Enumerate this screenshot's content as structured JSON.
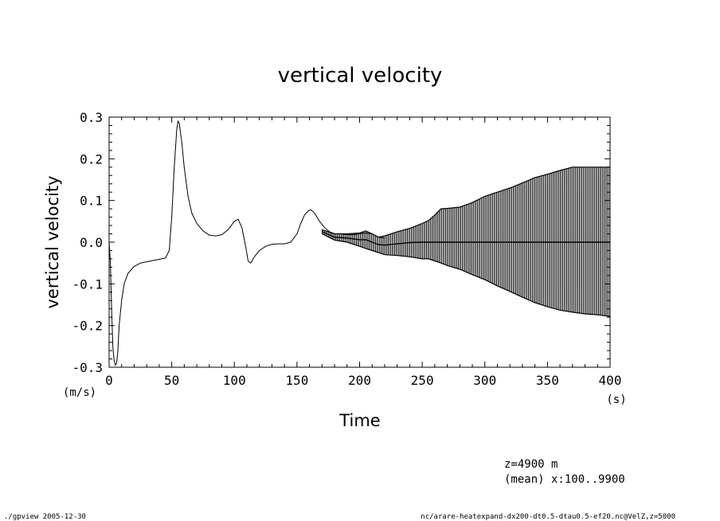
{
  "chart_data": {
    "type": "line",
    "title": "vertical velocity",
    "xlabel": "Time",
    "ylabel": "vertical velocity",
    "x_unit": "(s)",
    "y_unit": "(m/s)",
    "xlim": [
      0,
      400
    ],
    "ylim": [
      -0.3,
      0.3
    ],
    "x_ticks": [
      0,
      50,
      100,
      150,
      200,
      250,
      300,
      350,
      400
    ],
    "x_tick_labels": [
      "0",
      "50",
      "100",
      "150",
      "200",
      "250",
      "300",
      "350",
      "400"
    ],
    "y_ticks": [
      -0.3,
      -0.2,
      -0.1,
      0.0,
      0.1,
      0.2,
      0.3
    ],
    "y_tick_labels": [
      "-0.3",
      "-0.2",
      "-0.1",
      "0.0",
      "0.1",
      "0.2",
      "0.3"
    ],
    "grid": false,
    "series": [
      {
        "style": "line",
        "x": [
          0,
          1,
          2,
          3,
          4,
          5,
          6,
          7,
          8,
          10,
          12,
          15,
          20,
          25,
          30,
          35,
          40,
          45,
          48,
          50,
          52,
          54,
          55,
          56,
          58,
          60,
          63,
          66,
          70,
          75,
          80,
          85,
          90,
          95,
          100,
          103,
          106,
          109,
          111,
          113,
          116,
          120,
          125,
          130,
          135,
          140,
          145,
          150,
          153,
          156,
          159,
          161,
          164,
          168,
          172,
          176,
          180,
          185,
          190,
          195,
          200,
          205,
          210,
          215,
          220
        ],
        "y": [
          0.0,
          -0.05,
          -0.16,
          -0.25,
          -0.285,
          -0.295,
          -0.29,
          -0.26,
          -0.2,
          -0.14,
          -0.1,
          -0.075,
          -0.058,
          -0.05,
          -0.047,
          -0.044,
          -0.041,
          -0.038,
          -0.02,
          0.06,
          0.18,
          0.27,
          0.29,
          0.285,
          0.24,
          0.18,
          0.11,
          0.07,
          0.045,
          0.027,
          0.017,
          0.015,
          0.018,
          0.03,
          0.05,
          0.055,
          0.035,
          -0.01,
          -0.045,
          -0.05,
          -0.035,
          -0.02,
          -0.01,
          -0.005,
          -0.004,
          -0.004,
          0.0,
          0.02,
          0.045,
          0.065,
          0.075,
          0.078,
          0.07,
          0.05,
          0.035,
          0.025,
          0.02,
          0.02,
          0.018,
          0.018,
          0.02,
          0.022,
          0.02,
          0.012,
          0.01
        ]
      },
      {
        "style": "oscillation-band",
        "x": [
          170,
          180,
          190,
          200,
          205,
          210,
          215,
          220,
          230,
          240,
          250,
          255,
          260,
          265,
          270,
          280,
          290,
          300,
          310,
          320,
          330,
          340,
          350,
          360,
          370,
          380,
          390,
          400
        ],
        "upper": [
          0.03,
          0.02,
          0.02,
          0.022,
          0.027,
          0.02,
          0.012,
          0.015,
          0.025,
          0.033,
          0.045,
          0.052,
          0.065,
          0.08,
          0.081,
          0.084,
          0.095,
          0.11,
          0.12,
          0.13,
          0.142,
          0.155,
          0.163,
          0.172,
          0.18,
          0.18,
          0.18,
          0.18
        ],
        "lower": [
          0.02,
          0.005,
          0.0,
          -0.01,
          -0.015,
          -0.02,
          -0.025,
          -0.03,
          -0.032,
          -0.035,
          -0.04,
          -0.04,
          -0.045,
          -0.05,
          -0.056,
          -0.065,
          -0.078,
          -0.09,
          -0.105,
          -0.118,
          -0.132,
          -0.145,
          -0.155,
          -0.163,
          -0.168,
          -0.172,
          -0.174,
          -0.178
        ],
        "center": [
          0.025,
          0.012,
          0.01,
          0.006,
          0.006,
          0.0,
          -0.006,
          -0.007,
          -0.004,
          -0.001,
          0.0,
          0.0,
          0.0,
          0.0,
          0.0,
          0.0,
          0.0,
          0.0,
          0.0,
          0.0,
          0.0,
          0.0,
          0.0,
          0.0,
          0.0,
          0.0,
          0.0,
          0.0
        ]
      }
    ]
  },
  "notes": {
    "line1": "z=4900  m",
    "line2": "(mean) x:100..9900"
  },
  "footer": {
    "left": "./gpview  2005-12-30",
    "right": "nc/arare-heatexpand-dx200-dt0.5-dtau0.5-ef20.nc@VelZ,z=5000"
  }
}
